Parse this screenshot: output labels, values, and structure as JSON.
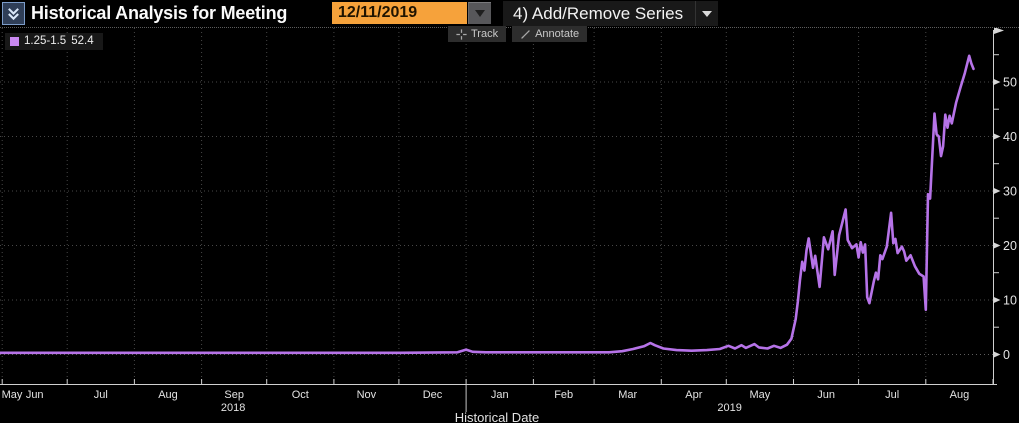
{
  "header": {
    "title": "Historical Analysis for Meeting",
    "date_field": {
      "value": "12/11/2019"
    },
    "series_menu_label": "4) Add/Remove Series",
    "collapse_icon": "double-chevron-down-icon"
  },
  "toolbar": {
    "track_label": "Track",
    "annotate_label": "Annotate",
    "track_icon": "crosshair-icon",
    "annotate_icon": "pencil-line-icon"
  },
  "legend": {
    "label": "1.25-1.5",
    "value": "52.4",
    "swatch_color": "#ca89f2"
  },
  "colors": {
    "background": "#000000",
    "accent_orange": "#f6a23b",
    "series_purple": "#b673e8",
    "grid": "#474747",
    "axis": "#d0d0d0"
  },
  "chart_data": {
    "type": "line",
    "title": "Historical Analysis for Meeting 12/11/2019",
    "xlabel": "Historical Date",
    "ylabel": "",
    "grid": true,
    "legend_position": "top-left",
    "x_domain": [
      "2018-05-31",
      "2019-09-01"
    ],
    "ylim": [
      -5.6,
      59.9
    ],
    "yticks": [
      0,
      10,
      20,
      30,
      40,
      50
    ],
    "yticks_minor": [
      5,
      15,
      25,
      35,
      45,
      55
    ],
    "month_labels": [
      "May",
      "Jun",
      "Jul",
      "Aug",
      "Sep",
      "Oct",
      "Nov",
      "Dec",
      "Jan",
      "Feb",
      "Mar",
      "Apr",
      "May",
      "Jun",
      "Jul",
      "Aug"
    ],
    "year_labels": [
      "2018",
      "2019"
    ],
    "series": [
      {
        "name": "1.25-1.5",
        "current_value": 52.4,
        "color": "#b673e8",
        "points": [
          [
            "2018-05-31",
            0.3
          ],
          [
            "2018-06-20",
            0.3
          ],
          [
            "2018-07-10",
            0.3
          ],
          [
            "2018-08-01",
            0.3
          ],
          [
            "2018-08-20",
            0.3
          ],
          [
            "2018-09-10",
            0.3
          ],
          [
            "2018-10-01",
            0.3
          ],
          [
            "2018-10-20",
            0.3
          ],
          [
            "2018-11-10",
            0.3
          ],
          [
            "2018-12-01",
            0.3
          ],
          [
            "2018-12-28",
            0.4
          ],
          [
            "2019-01-01",
            0.9
          ],
          [
            "2019-01-04",
            0.5
          ],
          [
            "2019-01-10",
            0.4
          ],
          [
            "2019-02-01",
            0.4
          ],
          [
            "2019-02-20",
            0.4
          ],
          [
            "2019-03-08",
            0.4
          ],
          [
            "2019-03-14",
            0.6
          ],
          [
            "2019-03-19",
            1.0
          ],
          [
            "2019-03-24",
            1.5
          ],
          [
            "2019-03-27",
            2.1
          ],
          [
            "2019-03-29",
            1.7
          ],
          [
            "2019-04-02",
            1.1
          ],
          [
            "2019-04-08",
            0.8
          ],
          [
            "2019-04-15",
            0.7
          ],
          [
            "2019-04-22",
            0.8
          ],
          [
            "2019-04-28",
            1.0
          ],
          [
            "2019-05-02",
            1.6
          ],
          [
            "2019-05-05",
            1.1
          ],
          [
            "2019-05-08",
            1.7
          ],
          [
            "2019-05-10",
            1.2
          ],
          [
            "2019-05-14",
            1.9
          ],
          [
            "2019-05-16",
            1.3
          ],
          [
            "2019-05-20",
            1.1
          ],
          [
            "2019-05-23",
            1.6
          ],
          [
            "2019-05-26",
            1.2
          ],
          [
            "2019-05-29",
            1.8
          ],
          [
            "2019-05-31",
            2.9
          ],
          [
            "2019-06-02",
            6.5
          ],
          [
            "2019-06-03",
            9.8
          ],
          [
            "2019-06-04",
            13.7
          ],
          [
            "2019-06-05",
            17.0
          ],
          [
            "2019-06-06",
            15.4
          ],
          [
            "2019-06-07",
            19.1
          ],
          [
            "2019-06-08",
            21.3
          ],
          [
            "2019-06-10",
            15.9
          ],
          [
            "2019-06-11",
            18.1
          ],
          [
            "2019-06-13",
            12.4
          ],
          [
            "2019-06-15",
            21.5
          ],
          [
            "2019-06-17",
            19.3
          ],
          [
            "2019-06-19",
            22.6
          ],
          [
            "2019-06-20",
            14.6
          ],
          [
            "2019-06-22",
            21.9
          ],
          [
            "2019-06-23",
            23.4
          ],
          [
            "2019-06-25",
            26.6
          ],
          [
            "2019-06-26",
            21.0
          ],
          [
            "2019-06-28",
            19.5
          ],
          [
            "2019-06-30",
            20.2
          ],
          [
            "2019-07-01",
            17.8
          ],
          [
            "2019-07-02",
            20.6
          ],
          [
            "2019-07-03",
            18.7
          ],
          [
            "2019-07-04",
            20.2
          ],
          [
            "2019-07-05",
            10.5
          ],
          [
            "2019-07-06",
            9.4
          ],
          [
            "2019-07-08",
            13.4
          ],
          [
            "2019-07-09",
            15.0
          ],
          [
            "2019-07-10",
            13.8
          ],
          [
            "2019-07-11",
            18.2
          ],
          [
            "2019-07-12",
            17.5
          ],
          [
            "2019-07-14",
            19.8
          ],
          [
            "2019-07-16",
            26.0
          ],
          [
            "2019-07-17",
            20.4
          ],
          [
            "2019-07-18",
            21.2
          ],
          [
            "2019-07-19",
            18.6
          ],
          [
            "2019-07-21",
            19.8
          ],
          [
            "2019-07-22",
            18.9
          ],
          [
            "2019-07-23",
            17.2
          ],
          [
            "2019-07-25",
            18.2
          ],
          [
            "2019-07-27",
            16.2
          ],
          [
            "2019-07-29",
            14.8
          ],
          [
            "2019-07-31",
            14.3
          ],
          [
            "2019-08-01",
            8.2
          ],
          [
            "2019-08-02",
            29.4
          ],
          [
            "2019-08-03",
            28.6
          ],
          [
            "2019-08-05",
            44.2
          ],
          [
            "2019-08-06",
            40.4
          ],
          [
            "2019-08-07",
            40.0
          ],
          [
            "2019-08-08",
            36.4
          ],
          [
            "2019-08-09",
            38.2
          ],
          [
            "2019-08-10",
            44.0
          ],
          [
            "2019-08-11",
            41.6
          ],
          [
            "2019-08-12",
            43.8
          ],
          [
            "2019-08-13",
            42.4
          ],
          [
            "2019-08-15",
            46.2
          ],
          [
            "2019-08-17",
            49.0
          ],
          [
            "2019-08-19",
            51.6
          ],
          [
            "2019-08-21",
            54.8
          ],
          [
            "2019-08-22",
            53.4
          ],
          [
            "2019-08-23",
            52.4
          ]
        ]
      }
    ]
  }
}
